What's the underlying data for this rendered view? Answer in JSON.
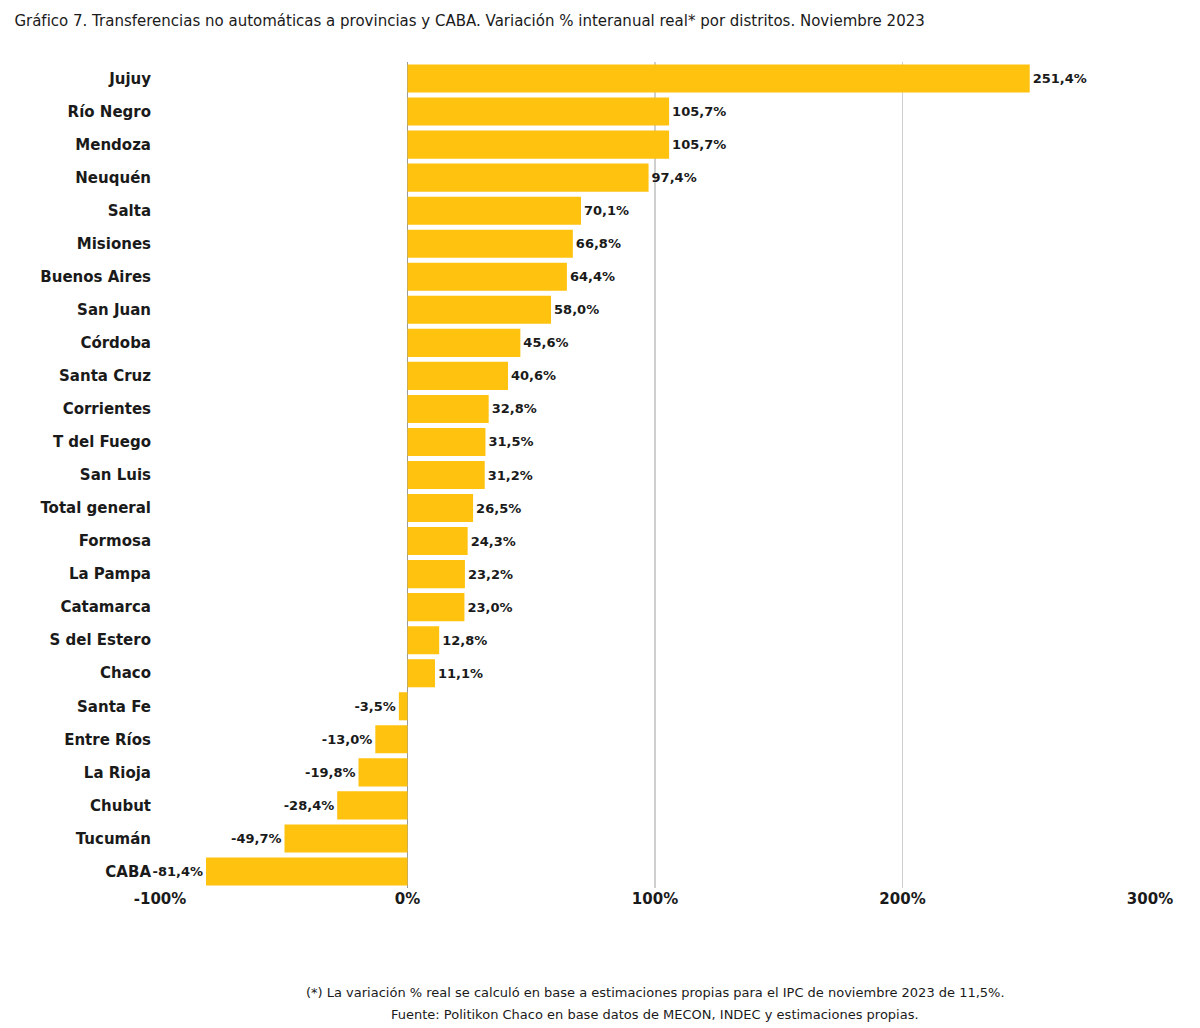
{
  "chart_data": {
    "type": "bar",
    "orientation": "horizontal",
    "title": "Gráfico 7. Transferencias no automáticas a provincias y CABA. Variación % interanual real* por distritos. Noviembre 2023",
    "categories": [
      "Jujuy",
      "Río Negro",
      "Mendoza",
      "Neuquén",
      "Salta",
      "Misiones",
      "Buenos Aires",
      "San Juan",
      "Córdoba",
      "Santa Cruz",
      "Corrientes",
      "T del Fuego",
      "San Luis",
      "Total general",
      "Formosa",
      "La Pampa",
      "Catamarca",
      "S del Estero",
      "Chaco",
      "Santa Fe",
      "Entre Ríos",
      "La Rioja",
      "Chubut",
      "Tucumán",
      "CABA"
    ],
    "values": [
      251.4,
      105.7,
      105.7,
      97.4,
      70.1,
      66.8,
      64.4,
      58.0,
      45.6,
      40.6,
      32.8,
      31.5,
      31.2,
      26.5,
      24.3,
      23.2,
      23.0,
      12.8,
      11.1,
      -3.5,
      -13.0,
      -19.8,
      -28.4,
      -49.7,
      -81.4
    ],
    "value_labels": [
      "251,4%",
      "105,7%",
      "105,7%",
      "97,4%",
      "70,1%",
      "66,8%",
      "64,4%",
      "58,0%",
      "45,6%",
      "40,6%",
      "32,8%",
      "31,5%",
      "31,2%",
      "26,5%",
      "24,3%",
      "23,2%",
      "23,0%",
      "12,8%",
      "11,1%",
      "-3,5%",
      "-13,0%",
      "-19,8%",
      "-28,4%",
      "-49,7%",
      "-81,4%"
    ],
    "data_labels": true,
    "color": "#FFC20E",
    "xlim": [
      -100,
      300
    ],
    "xticks": [
      {
        "value": -100,
        "label": "-100%"
      },
      {
        "value": 0,
        "label": "0%"
      },
      {
        "value": 100,
        "label": "100%"
      },
      {
        "value": 200,
        "label": "200%"
      },
      {
        "value": 300,
        "label": "300%"
      }
    ],
    "grid": true,
    "annotations": [
      "(*) La variación % real se calculó en base a estimaciones propias para el IPC de noviembre 2023 de 11,5%.",
      "Fuente: Politikon Chaco en base datos de MECON, INDEC y estimaciones propias."
    ]
  }
}
